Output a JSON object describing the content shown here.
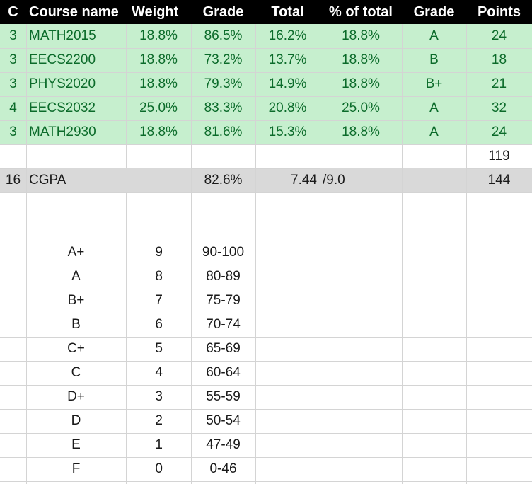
{
  "colors": {
    "header_bg": "#000000",
    "header_text": "#ffffff",
    "course_row_bg": "#c6efce",
    "course_row_text": "#0b6b2a",
    "cgpa_row_bg": "#d9d9d9",
    "gridline": "#d4d4d4"
  },
  "headers": [
    "C",
    "Course name",
    "Weight",
    "Grade",
    "Total",
    "% of total",
    "Grade",
    "Points"
  ],
  "courses": [
    {
      "credits": "3",
      "name": "MATH2015",
      "weight": "18.8%",
      "grade_pct": "86.5%",
      "total": "16.2%",
      "pct_total": "18.8%",
      "letter": "A",
      "points": "24"
    },
    {
      "credits": "3",
      "name": "EECS2200",
      "weight": "18.8%",
      "grade_pct": "73.2%",
      "total": "13.7%",
      "pct_total": "18.8%",
      "letter": "B",
      "points": "18"
    },
    {
      "credits": "3",
      "name": "PHYS2020",
      "weight": "18.8%",
      "grade_pct": "79.3%",
      "total": "14.9%",
      "pct_total": "18.8%",
      "letter": "B+",
      "points": "21"
    },
    {
      "credits": "4",
      "name": "EECS2032",
      "weight": "25.0%",
      "grade_pct": "83.3%",
      "total": "20.8%",
      "pct_total": "25.0%",
      "letter": "A",
      "points": "32"
    },
    {
      "credits": "3",
      "name": "MATH2930",
      "weight": "18.8%",
      "grade_pct": "81.6%",
      "total": "15.3%",
      "pct_total": "18.8%",
      "letter": "A",
      "points": "24"
    }
  ],
  "points_sum": "119",
  "cgpa_row": {
    "credits": "16",
    "label": "CGPA",
    "grade_pct": "82.6%",
    "gpa": "7.44",
    "scale": "/9.0",
    "max_points": "144"
  },
  "scale_table": [
    {
      "letter": "A+",
      "value": "9",
      "range": "90-100"
    },
    {
      "letter": "A",
      "value": "8",
      "range": "80-89"
    },
    {
      "letter": "B+",
      "value": "7",
      "range": "75-79"
    },
    {
      "letter": "B",
      "value": "6",
      "range": "70-74"
    },
    {
      "letter": "C+",
      "value": "5",
      "range": "65-69"
    },
    {
      "letter": "C",
      "value": "4",
      "range": "60-64"
    },
    {
      "letter": "D+",
      "value": "3",
      "range": "55-59"
    },
    {
      "letter": "D",
      "value": "2",
      "range": "50-54"
    },
    {
      "letter": "E",
      "value": "1",
      "range": "47-49"
    },
    {
      "letter": "F",
      "value": "0",
      "range": "0-46"
    }
  ]
}
